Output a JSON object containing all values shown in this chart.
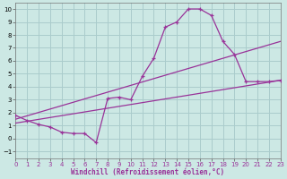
{
  "xlabel": "Windchill (Refroidissement éolien,°C)",
  "bg_color": "#cce8e4",
  "grid_color": "#aacccc",
  "line_color": "#993399",
  "xlim": [
    0,
    23
  ],
  "ylim": [
    -1.5,
    10.5
  ],
  "xticks": [
    0,
    1,
    2,
    3,
    4,
    5,
    6,
    7,
    8,
    9,
    10,
    11,
    12,
    13,
    14,
    15,
    16,
    17,
    18,
    19,
    20,
    21,
    22,
    23
  ],
  "yticks": [
    -1,
    0,
    1,
    2,
    3,
    4,
    5,
    6,
    7,
    8,
    9,
    10
  ],
  "curve_x": [
    0,
    1,
    2,
    3,
    4,
    5,
    6,
    7,
    8,
    9,
    10,
    11,
    12,
    13,
    14,
    15,
    16,
    17,
    18,
    19,
    20,
    21,
    22,
    23
  ],
  "curve_y": [
    1.8,
    1.4,
    1.1,
    0.9,
    0.5,
    0.4,
    0.4,
    -0.3,
    3.1,
    3.2,
    3.0,
    4.8,
    6.2,
    8.6,
    9.0,
    10.0,
    10.0,
    9.5,
    7.5,
    6.5,
    4.4,
    4.4,
    4.4,
    4.5
  ],
  "line2_x": [
    0,
    23
  ],
  "line2_y": [
    1.5,
    7.5
  ],
  "line3_x": [
    0,
    23
  ],
  "line3_y": [
    1.2,
    4.5
  ]
}
